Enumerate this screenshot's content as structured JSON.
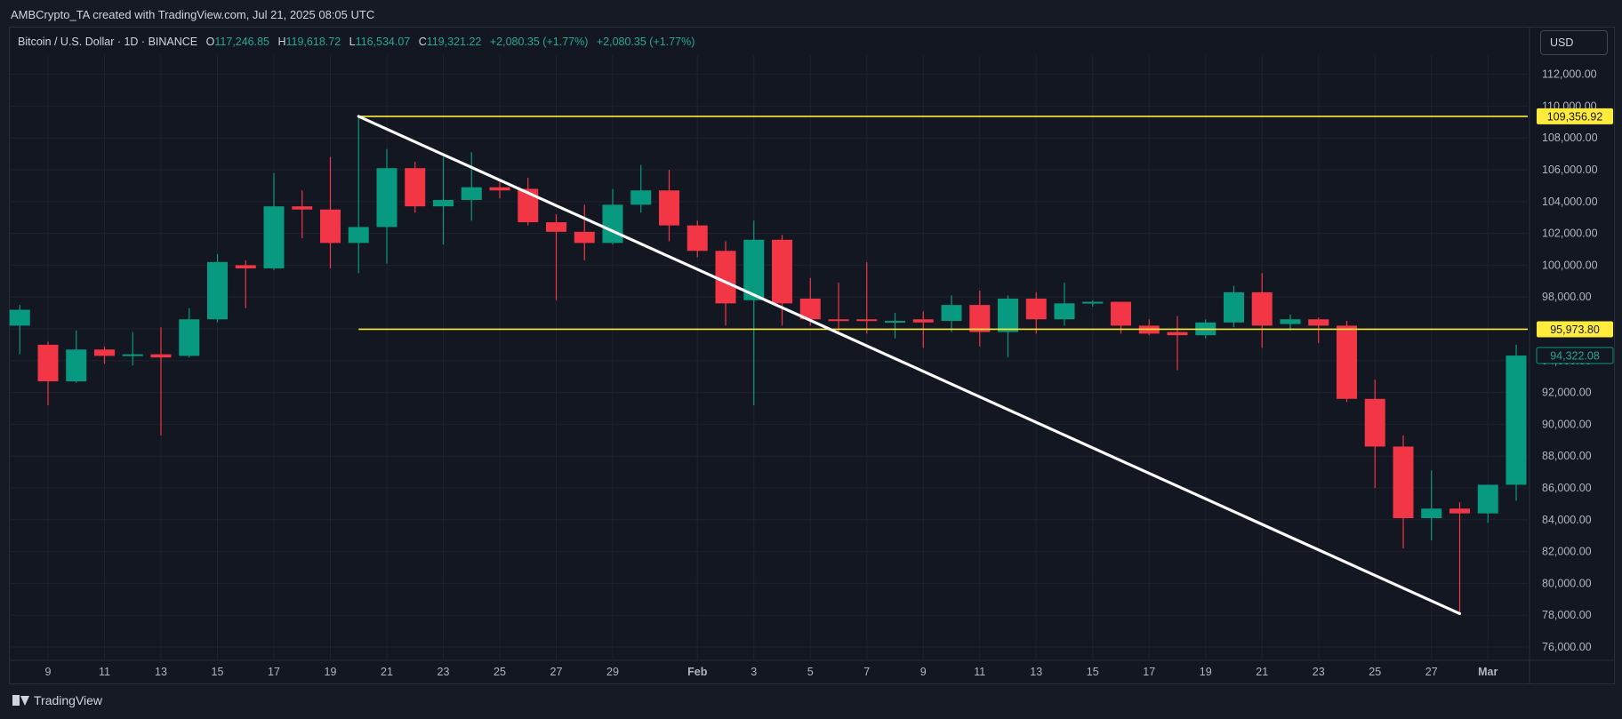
{
  "credit": "AMBCrypto_TA created with TradingView.com, Jul 21, 2025 08:05 UTC",
  "legend": {
    "symbol": "Bitcoin / U.S. Dollar · 1D · BINANCE",
    "o_label": "O",
    "o_value": "117,246.85",
    "h_label": "H",
    "h_value": "119,618.72",
    "l_label": "L",
    "l_value": "116,534.07",
    "c_label": "C",
    "c_value": "119,321.22",
    "change1": "+2,080.35 (+1.77%)",
    "change2": "+2,080.35 (+1.77%)"
  },
  "currency_button": "USD",
  "branding": "TradingView",
  "colors": {
    "background": "#131722",
    "up": "#089981",
    "down": "#f23645",
    "grid": "#1e222d",
    "level_line": "#ffeb3b",
    "trend_line": "#ffffff",
    "axis_text": "#b2b5be"
  },
  "chart_data": {
    "type": "candlestick",
    "title": "Bitcoin / U.S. Dollar · 1D · BINANCE",
    "y_axis_position": "right",
    "ylim": [
      75000,
      114000
    ],
    "y_ticks": [
      "76,000.00",
      "78,000.00",
      "80,000.00",
      "82,000.00",
      "84,000.00",
      "86,000.00",
      "88,000.00",
      "90,000.00",
      "92,000.00",
      "94,000.00",
      "96,000.00",
      "98,000.00",
      "100,000.00",
      "102,000.00",
      "104,000.00",
      "106,000.00",
      "108,000.00",
      "110,000.00",
      "112,000.00"
    ],
    "x_ticks": [
      {
        "day": 9,
        "label": "9"
      },
      {
        "day": 11,
        "label": "11"
      },
      {
        "day": 13,
        "label": "13"
      },
      {
        "day": 15,
        "label": "15"
      },
      {
        "day": 17,
        "label": "17"
      },
      {
        "day": 19,
        "label": "19"
      },
      {
        "day": 21,
        "label": "21"
      },
      {
        "day": 23,
        "label": "23"
      },
      {
        "day": 25,
        "label": "25"
      },
      {
        "day": 27,
        "label": "27"
      },
      {
        "day": 29,
        "label": "29"
      },
      {
        "day": 32,
        "label": "Feb"
      },
      {
        "day": 34,
        "label": "3"
      },
      {
        "day": 36,
        "label": "5"
      },
      {
        "day": 38,
        "label": "7"
      },
      {
        "day": 40,
        "label": "9"
      },
      {
        "day": 42,
        "label": "11"
      },
      {
        "day": 44,
        "label": "13"
      },
      {
        "day": 46,
        "label": "15"
      },
      {
        "day": 48,
        "label": "17"
      },
      {
        "day": 50,
        "label": "19"
      },
      {
        "day": 52,
        "label": "21"
      },
      {
        "day": 54,
        "label": "23"
      },
      {
        "day": 56,
        "label": "25"
      },
      {
        "day": 58,
        "label": "27"
      },
      {
        "day": 60,
        "label": "Mar"
      }
    ],
    "candles": [
      {
        "day": 8,
        "o": 96200,
        "h": 97500,
        "l": 94400,
        "c": 97200
      },
      {
        "day": 9,
        "o": 95000,
        "h": 95200,
        "l": 91200,
        "c": 92700
      },
      {
        "day": 10,
        "o": 92700,
        "h": 95900,
        "l": 92600,
        "c": 94700
      },
      {
        "day": 11,
        "o": 94700,
        "h": 94900,
        "l": 93800,
        "c": 94300
      },
      {
        "day": 12,
        "o": 94300,
        "h": 95800,
        "l": 93700,
        "c": 94400
      },
      {
        "day": 13,
        "o": 94400,
        "h": 96100,
        "l": 89300,
        "c": 94200
      },
      {
        "day": 14,
        "o": 94300,
        "h": 97300,
        "l": 94200,
        "c": 96600
      },
      {
        "day": 15,
        "o": 96600,
        "h": 100700,
        "l": 96400,
        "c": 100200
      },
      {
        "day": 16,
        "o": 100000,
        "h": 100300,
        "l": 97300,
        "c": 99800
      },
      {
        "day": 17,
        "o": 99800,
        "h": 105800,
        "l": 99700,
        "c": 103700
      },
      {
        "day": 18,
        "o": 103700,
        "h": 104700,
        "l": 101700,
        "c": 103500
      },
      {
        "day": 19,
        "o": 103500,
        "h": 106800,
        "l": 99800,
        "c": 101400
      },
      {
        "day": 20,
        "o": 101400,
        "h": 109356,
        "l": 99500,
        "c": 102400
      },
      {
        "day": 21,
        "o": 102400,
        "h": 107300,
        "l": 100100,
        "c": 106100
      },
      {
        "day": 22,
        "o": 106100,
        "h": 106500,
        "l": 103300,
        "c": 103700
      },
      {
        "day": 23,
        "o": 103700,
        "h": 106800,
        "l": 101300,
        "c": 104100
      },
      {
        "day": 24,
        "o": 104100,
        "h": 107100,
        "l": 102800,
        "c": 104900
      },
      {
        "day": 25,
        "o": 104900,
        "h": 105300,
        "l": 104200,
        "c": 104700
      },
      {
        "day": 26,
        "o": 104800,
        "h": 105500,
        "l": 102500,
        "c": 102700
      },
      {
        "day": 27,
        "o": 102700,
        "h": 103200,
        "l": 97800,
        "c": 102100
      },
      {
        "day": 28,
        "o": 102100,
        "h": 103800,
        "l": 100300,
        "c": 101400
      },
      {
        "day": 29,
        "o": 101400,
        "h": 104800,
        "l": 101300,
        "c": 103800
      },
      {
        "day": 30,
        "o": 103800,
        "h": 106300,
        "l": 103300,
        "c": 104700
      },
      {
        "day": 31,
        "o": 104700,
        "h": 106000,
        "l": 101500,
        "c": 102500
      },
      {
        "day": 32,
        "o": 102500,
        "h": 102800,
        "l": 100500,
        "c": 100900
      },
      {
        "day": 33,
        "o": 100900,
        "h": 101500,
        "l": 96200,
        "c": 97600
      },
      {
        "day": 34,
        "o": 97800,
        "h": 102800,
        "l": 91200,
        "c": 101600
      },
      {
        "day": 35,
        "o": 101600,
        "h": 101900,
        "l": 96200,
        "c": 97600
      },
      {
        "day": 36,
        "o": 97900,
        "h": 99200,
        "l": 96200,
        "c": 96600
      },
      {
        "day": 37,
        "o": 96600,
        "h": 98900,
        "l": 95800,
        "c": 96500
      },
      {
        "day": 38,
        "o": 96600,
        "h": 100200,
        "l": 95700,
        "c": 96500
      },
      {
        "day": 39,
        "o": 96500,
        "h": 97000,
        "l": 95400,
        "c": 96500
      },
      {
        "day": 40,
        "o": 96600,
        "h": 97100,
        "l": 94800,
        "c": 96400
      },
      {
        "day": 41,
        "o": 96500,
        "h": 98100,
        "l": 95800,
        "c": 97500
      },
      {
        "day": 42,
        "o": 97500,
        "h": 98400,
        "l": 94900,
        "c": 95800
      },
      {
        "day": 43,
        "o": 95800,
        "h": 98100,
        "l": 94200,
        "c": 97900
      },
      {
        "day": 44,
        "o": 97900,
        "h": 98300,
        "l": 95700,
        "c": 96600
      },
      {
        "day": 45,
        "o": 96600,
        "h": 98900,
        "l": 96200,
        "c": 97600
      },
      {
        "day": 46,
        "o": 97600,
        "h": 97800,
        "l": 97400,
        "c": 97700
      },
      {
        "day": 47,
        "o": 97700,
        "h": 97700,
        "l": 95700,
        "c": 96200
      },
      {
        "day": 48,
        "o": 96200,
        "h": 96600,
        "l": 95600,
        "c": 95700
      },
      {
        "day": 49,
        "o": 95800,
        "h": 96800,
        "l": 93400,
        "c": 95600
      },
      {
        "day": 50,
        "o": 95600,
        "h": 96600,
        "l": 95400,
        "c": 96400
      },
      {
        "day": 51,
        "o": 96400,
        "h": 98700,
        "l": 96100,
        "c": 98300
      },
      {
        "day": 52,
        "o": 98300,
        "h": 99500,
        "l": 94800,
        "c": 96200
      },
      {
        "day": 53,
        "o": 96300,
        "h": 96900,
        "l": 95900,
        "c": 96600
      },
      {
        "day": 54,
        "o": 96600,
        "h": 96700,
        "l": 95100,
        "c": 96200
      },
      {
        "day": 55,
        "o": 96200,
        "h": 96500,
        "l": 91400,
        "c": 91600
      },
      {
        "day": 56,
        "o": 91600,
        "h": 92800,
        "l": 86000,
        "c": 88600
      },
      {
        "day": 57,
        "o": 88600,
        "h": 89300,
        "l": 82200,
        "c": 84100
      },
      {
        "day": 58,
        "o": 84100,
        "h": 87100,
        "l": 82700,
        "c": 84700
      },
      {
        "day": 59,
        "o": 84700,
        "h": 85100,
        "l": 78200,
        "c": 84400
      },
      {
        "day": 60,
        "o": 84400,
        "h": 86200,
        "l": 83800,
        "c": 86200
      },
      {
        "day": 61,
        "o": 86200,
        "h": 95000,
        "l": 85200,
        "c": 94322
      }
    ],
    "horizontal_levels": [
      {
        "price": 109356.92,
        "label": "109,356.92"
      },
      {
        "price": 95973.8,
        "label": "95,973.80"
      }
    ],
    "trend_line": {
      "from": {
        "day": 20,
        "price": 109356
      },
      "to": {
        "day": 59,
        "price": 78100
      }
    },
    "last_price": {
      "price": 94322.08,
      "label": "94,322.08"
    }
  }
}
